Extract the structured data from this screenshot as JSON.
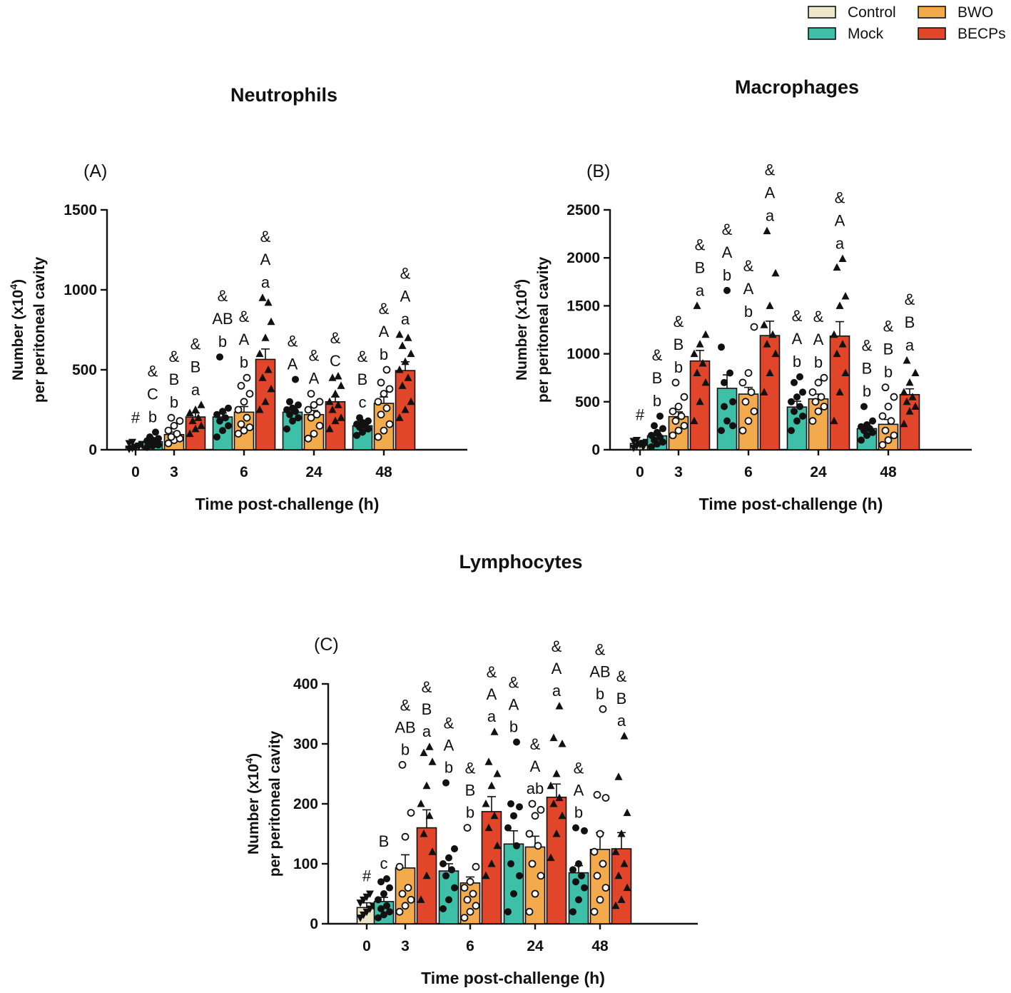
{
  "legend": {
    "items": [
      {
        "name": "Control",
        "color": "#ede6c8"
      },
      {
        "name": "BWO",
        "color": "#f2aa4c"
      },
      {
        "name": "Mock",
        "color": "#3dbfa8"
      },
      {
        "name": "BECPs",
        "color": "#e1452a"
      }
    ]
  },
  "series_colors": {
    "Control": "#ede6c8",
    "Mock": "#3dbfa8",
    "BWO": "#f2aa4c",
    "BECPs": "#e1452a"
  },
  "chart_data": [
    {
      "type": "bar",
      "title": "Neutrophils",
      "panel_label": "(A)",
      "ylabel_line1": "Number (x10",
      "ylabel_sup": "4",
      "ylabel_line1_end": ")",
      "ylabel_line2": "per peritoneal cavity",
      "xlabel": "Time post-challenge (h)",
      "ylim": [
        0,
        1500
      ],
      "yticks": [
        0,
        500,
        1000,
        1500
      ],
      "categories": [
        "0",
        "3",
        "6",
        "24",
        "48"
      ],
      "control": {
        "value": 22,
        "sem": 12,
        "label": "#",
        "points": [
          5,
          10,
          18,
          25,
          30,
          40,
          48,
          12,
          20,
          35
        ]
      },
      "series": [
        {
          "name": "Mock",
          "values": [
            null,
            50,
            205,
            235,
            150
          ],
          "sem": [
            null,
            10,
            25,
            18,
            15
          ]
        },
        {
          "name": "BWO",
          "values": [
            null,
            95,
            235,
            220,
            290
          ],
          "sem": [
            null,
            15,
            35,
            25,
            40
          ]
        },
        {
          "name": "BECPs",
          "values": [
            null,
            205,
            565,
            300,
            495
          ],
          "sem": [
            null,
            25,
            65,
            30,
            55
          ]
        }
      ],
      "points": [
        [
          null,
          [
            15,
            25,
            30,
            40,
            50,
            55,
            60,
            70,
            80,
            110
          ],
          [
            80,
            120,
            150,
            180,
            200,
            220,
            240,
            260,
            580
          ],
          [
            130,
            180,
            200,
            220,
            240,
            250,
            260,
            280,
            300,
            440
          ],
          [
            90,
            110,
            130,
            140,
            150,
            160,
            170,
            180,
            200
          ]
        ],
        [
          null,
          [
            40,
            60,
            70,
            80,
            100,
            120,
            150,
            180,
            200
          ],
          [
            100,
            120,
            140,
            160,
            200,
            250,
            300,
            350,
            400,
            450
          ],
          [
            70,
            100,
            150,
            200,
            220,
            250,
            280,
            300,
            350
          ],
          [
            80,
            120,
            160,
            220,
            260,
            300,
            350,
            380,
            420,
            500
          ]
        ],
        [
          null,
          [
            100,
            130,
            150,
            180,
            200,
            230,
            250,
            280
          ],
          [
            250,
            300,
            380,
            450,
            500,
            600,
            700,
            800,
            950,
            920
          ],
          [
            130,
            180,
            200,
            250,
            280,
            300,
            350,
            400,
            450,
            460
          ],
          [
            200,
            250,
            300,
            400,
            450,
            500,
            550,
            600,
            650,
            700,
            720
          ]
        ]
      ],
      "annotations": [
        [
          null,
          [
            "&",
            "C",
            "b"
          ],
          [
            "&",
            "AB",
            "b"
          ],
          [
            "&",
            "A",
            ""
          ],
          [
            "&",
            "B",
            "c"
          ]
        ],
        [
          null,
          [
            "&",
            "B",
            "b"
          ],
          [
            "&",
            "A",
            "b"
          ],
          [
            "&",
            "A",
            ""
          ],
          [
            "&",
            "A",
            "b"
          ]
        ],
        [
          null,
          [
            "&",
            "B",
            "a"
          ],
          [
            "&",
            "A",
            "a"
          ],
          [
            "&",
            "C",
            ""
          ],
          [
            "&",
            "A",
            "a"
          ]
        ]
      ]
    },
    {
      "type": "bar",
      "title": "Macrophages",
      "panel_label": "(B)",
      "ylabel_line1": "Number (x10",
      "ylabel_sup": "4",
      "ylabel_line1_end": ")",
      "ylabel_line2": "per peritoneal cavity",
      "xlabel": "Time post-challenge (h)",
      "ylim": [
        0,
        2500
      ],
      "yticks": [
        0,
        500,
        1000,
        1500,
        2000,
        2500
      ],
      "categories": [
        "0",
        "3",
        "6",
        "24",
        "48"
      ],
      "control": {
        "value": 65,
        "sem": 20,
        "label": "#",
        "points": [
          20,
          40,
          55,
          70,
          80,
          90,
          100,
          60,
          30
        ]
      },
      "series": [
        {
          "name": "Mock",
          "values": [
            null,
            145,
            640,
            445,
            220
          ],
          "sem": [
            null,
            25,
            140,
            60,
            30
          ]
        },
        {
          "name": "BWO",
          "values": [
            null,
            345,
            580,
            530,
            265
          ],
          "sem": [
            null,
            50,
            70,
            50,
            50
          ]
        },
        {
          "name": "BECPs",
          "values": [
            null,
            925,
            1190,
            1185,
            575
          ],
          "sem": [
            null,
            110,
            150,
            150,
            60
          ]
        }
      ],
      "points": [
        [
          null,
          [
            30,
            60,
            80,
            100,
            130,
            150,
            180,
            220,
            250,
            350
          ],
          [
            200,
            300,
            500,
            700,
            800,
            1070,
            1660,
            250,
            450
          ],
          [
            200,
            300,
            350,
            400,
            450,
            500,
            550,
            600,
            700,
            760
          ],
          [
            100,
            150,
            180,
            200,
            220,
            240,
            260,
            300,
            450
          ]
        ],
        [
          null,
          [
            150,
            200,
            250,
            300,
            350,
            400,
            450,
            550,
            700
          ],
          [
            200,
            300,
            400,
            500,
            600,
            700,
            800,
            1280
          ],
          [
            300,
            400,
            450,
            500,
            550,
            600,
            700,
            750
          ],
          [
            50,
            100,
            150,
            200,
            300,
            350,
            450,
            550,
            650
          ]
        ],
        [
          null,
          [
            300,
            500,
            700,
            800,
            900,
            1000,
            1100,
            1200,
            1500
          ],
          [
            600,
            800,
            1000,
            1100,
            1200,
            1300,
            1500,
            1840,
            2280
          ],
          [
            300,
            600,
            800,
            1000,
            1100,
            1200,
            1500,
            1600,
            1900,
            1990
          ],
          [
            270,
            400,
            450,
            500,
            550,
            600,
            700,
            800,
            930
          ]
        ]
      ],
      "annotations": [
        [
          null,
          [
            "&",
            "B",
            "b"
          ],
          [
            "&",
            "A",
            "b"
          ],
          [
            "&",
            "A",
            "b"
          ],
          [
            "&",
            "B",
            "b"
          ]
        ],
        [
          null,
          [
            "&",
            "B",
            "b"
          ],
          [
            "&",
            "A",
            "b"
          ],
          [
            "&",
            "A",
            "b"
          ],
          [
            "&",
            "B",
            "b"
          ]
        ],
        [
          null,
          [
            "&",
            "B",
            "a"
          ],
          [
            "&",
            "A",
            "a"
          ],
          [
            "&",
            "A",
            "a"
          ],
          [
            "&",
            "B",
            "a"
          ]
        ]
      ]
    },
    {
      "type": "bar",
      "title": "Lymphocytes",
      "panel_label": "(C)",
      "ylabel_line1": "Number (x10",
      "ylabel_sup": "4",
      "ylabel_line1_end": ")",
      "ylabel_line2": "per peritoneal cavity",
      "xlabel": "Time post-challenge (h)",
      "ylim": [
        0,
        400
      ],
      "yticks": [
        0,
        100,
        200,
        300,
        400
      ],
      "categories": [
        "0",
        "3",
        "6",
        "24",
        "48"
      ],
      "control": {
        "value": 27,
        "sem": 8,
        "label": "#",
        "points": [
          10,
          15,
          20,
          25,
          30,
          35,
          40,
          45,
          50
        ]
      },
      "series": [
        {
          "name": "Mock",
          "values": [
            null,
            37,
            88,
            133,
            85
          ],
          "sem": [
            null,
            7,
            12,
            22,
            12
          ]
        },
        {
          "name": "BWO",
          "values": [
            null,
            93,
            68,
            128,
            124
          ],
          "sem": [
            null,
            22,
            10,
            18,
            28
          ]
        },
        {
          "name": "BECPs",
          "values": [
            null,
            160,
            187,
            211,
            125
          ],
          "sem": [
            null,
            30,
            25,
            22,
            27
          ]
        }
      ],
      "points": [
        [
          null,
          [
            10,
            15,
            20,
            25,
            30,
            40,
            50,
            60,
            70,
            75
          ],
          [
            25,
            40,
            60,
            80,
            90,
            100,
            110,
            125,
            235
          ],
          [
            20,
            50,
            80,
            100,
            130,
            160,
            180,
            195,
            200,
            303
          ],
          [
            20,
            40,
            60,
            70,
            80,
            90,
            100,
            155,
            160
          ]
        ],
        [
          null,
          [
            20,
            30,
            40,
            50,
            60,
            95,
            145,
            185,
            265
          ],
          [
            10,
            20,
            30,
            40,
            50,
            60,
            70,
            95,
            160
          ],
          [
            20,
            50,
            80,
            100,
            130,
            150,
            180,
            190,
            200
          ],
          [
            20,
            40,
            60,
            80,
            100,
            120,
            150,
            210,
            215,
            358
          ]
        ],
        [
          null,
          [
            40,
            80,
            120,
            150,
            180,
            200,
            230,
            270,
            285,
            295
          ],
          [
            80,
            100,
            130,
            160,
            180,
            200,
            230,
            250,
            270,
            320
          ],
          [
            110,
            150,
            180,
            200,
            210,
            230,
            250,
            300,
            310,
            363
          ],
          [
            30,
            40,
            60,
            80,
            100,
            120,
            150,
            185,
            245,
            313
          ]
        ]
      ],
      "annotations": [
        [
          null,
          [
            "",
            "B",
            "c"
          ],
          [
            "&",
            "A",
            "b"
          ],
          [
            "&",
            "A",
            "b"
          ],
          [
            "&",
            "A",
            "b"
          ]
        ],
        [
          null,
          [
            "&",
            "AB",
            "b"
          ],
          [
            "&",
            "B",
            "b"
          ],
          [
            "&",
            "A",
            "ab"
          ],
          [
            "&",
            "AB",
            "b"
          ]
        ],
        [
          null,
          [
            "&",
            "B",
            "a"
          ],
          [
            "&",
            "A",
            "a"
          ],
          [
            "&",
            "A",
            "a"
          ],
          [
            "&",
            "B",
            "a"
          ]
        ]
      ]
    }
  ]
}
